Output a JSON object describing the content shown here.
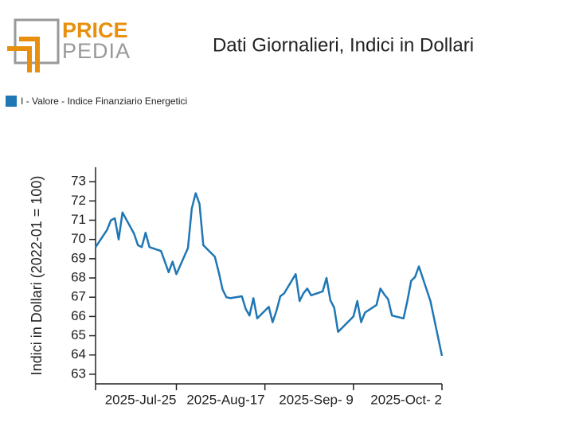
{
  "logo": {
    "top": "PRICE",
    "bottom": "PEDIA"
  },
  "chart_data": {
    "type": "line",
    "title": "Dati Giornalieri, Indici in Dollari",
    "ylabel": "Indici in Dollari (2022-01 = 100)",
    "legend": "top-left",
    "x": [
      "2025-07-04",
      "2025-07-07",
      "2025-07-08",
      "2025-07-09",
      "2025-07-10",
      "2025-07-11",
      "2025-07-14",
      "2025-07-15",
      "2025-07-16",
      "2025-07-17",
      "2025-07-18",
      "2025-07-21",
      "2025-07-23",
      "2025-07-24",
      "2025-07-25",
      "2025-07-28",
      "2025-07-29",
      "2025-07-30",
      "2025-07-31",
      "2025-08-01",
      "2025-08-04",
      "2025-08-05",
      "2025-08-06",
      "2025-08-07",
      "2025-08-08",
      "2025-08-11",
      "2025-08-12",
      "2025-08-13",
      "2025-08-14",
      "2025-08-15",
      "2025-08-18",
      "2025-08-19",
      "2025-08-20",
      "2025-08-21",
      "2025-08-22",
      "2025-08-25",
      "2025-08-26",
      "2025-08-27",
      "2025-08-28",
      "2025-08-29",
      "2025-09-01",
      "2025-09-02",
      "2025-09-03",
      "2025-09-04",
      "2025-09-05",
      "2025-09-08",
      "2025-09-09",
      "2025-09-10",
      "2025-09-11",
      "2025-09-12",
      "2025-09-15",
      "2025-09-16",
      "2025-09-17",
      "2025-09-18",
      "2025-09-19",
      "2025-09-22",
      "2025-09-23",
      "2025-09-24",
      "2025-09-25",
      "2025-09-26",
      "2025-09-29",
      "2025-10-02"
    ],
    "series": [
      {
        "name": "I - Valore - Indice Finanziario Energetici",
        "color": "#1f77b4",
        "values": [
          69.6,
          70.5,
          71.0,
          71.1,
          70.0,
          71.4,
          70.3,
          69.7,
          69.6,
          70.35,
          69.6,
          69.4,
          68.3,
          68.85,
          68.2,
          69.55,
          71.6,
          72.4,
          71.85,
          69.7,
          69.1,
          68.3,
          67.4,
          67.0,
          66.95,
          67.05,
          66.4,
          66.05,
          66.95,
          65.9,
          66.5,
          65.7,
          66.3,
          67.05,
          67.2,
          68.2,
          66.8,
          67.2,
          67.45,
          67.1,
          67.3,
          68.0,
          66.85,
          66.45,
          65.2,
          65.8,
          66.0,
          66.8,
          65.7,
          66.2,
          66.6,
          67.45,
          67.15,
          66.9,
          66.05,
          65.9,
          66.8,
          67.85,
          68.05,
          68.6,
          66.8,
          63.95
        ]
      }
    ],
    "xlim": [
      "2025-07-04",
      "2025-10-02"
    ],
    "xticks": [
      {
        "value": "2025-07-25",
        "label": "2025-Jul-25"
      },
      {
        "value": "2025-08-17",
        "label": "2025-Aug-17"
      },
      {
        "value": "2025-09-09",
        "label": "2025-Sep- 9"
      },
      {
        "value": "2025-10-02",
        "label": "2025-Oct- 2"
      }
    ],
    "ylim": [
      62.5,
      73.75
    ],
    "yticks": [
      63,
      64,
      65,
      66,
      67,
      68,
      69,
      70,
      71,
      72,
      73
    ]
  }
}
